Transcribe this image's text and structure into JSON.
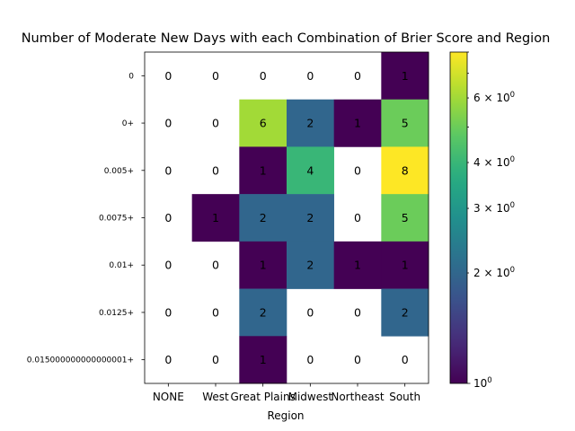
{
  "chart_data": {
    "type": "heatmap",
    "title": "Number of Moderate New Days with each Combination of Brier Score and Region",
    "xlabel": "Region",
    "ylabel": "",
    "x_categories": [
      "NONE",
      "West",
      "Great Plains",
      "Midwest",
      "Northeast",
      "South"
    ],
    "y_categories": [
      "0",
      "0+",
      "0.005+",
      "0.0075+",
      "0.01+",
      "0.0125+",
      "0.015000000000000001+"
    ],
    "values": [
      [
        0,
        0,
        0,
        0,
        0,
        1
      ],
      [
        0,
        0,
        6,
        2,
        1,
        5
      ],
      [
        0,
        0,
        1,
        4,
        0,
        8
      ],
      [
        0,
        1,
        2,
        2,
        0,
        5
      ],
      [
        0,
        0,
        1,
        2,
        1,
        1
      ],
      [
        0,
        0,
        2,
        0,
        0,
        2
      ],
      [
        0,
        0,
        1,
        0,
        0,
        0
      ]
    ],
    "color_scale": "log",
    "colormap": "viridis",
    "zero_cells": "blank (white)",
    "colorbar": {
      "range": [
        1,
        8
      ],
      "major_ticks": [
        {
          "value": 1,
          "base": "10",
          "exp": "0"
        }
      ],
      "minor_ticks": [
        {
          "value": 2,
          "mantissa": "2",
          "sep": " × ",
          "base": "10",
          "exp": "0"
        },
        {
          "value": 3,
          "mantissa": "3",
          "sep": " × ",
          "base": "10",
          "exp": "0"
        },
        {
          "value": 4,
          "mantissa": "4",
          "sep": " × ",
          "base": "10",
          "exp": "0"
        },
        {
          "value": 6,
          "mantissa": "6",
          "sep": " × ",
          "base": "10",
          "exp": "0"
        }
      ]
    }
  }
}
